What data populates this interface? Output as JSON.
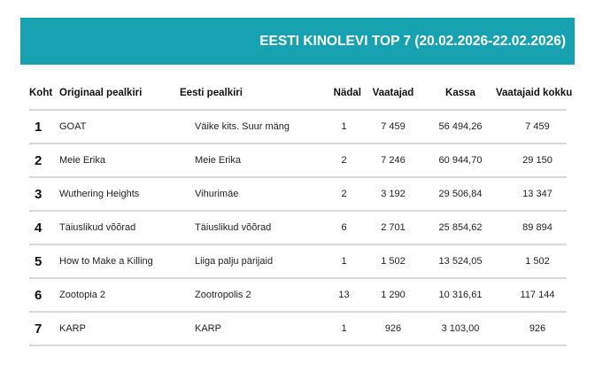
{
  "banner": {
    "title": "EESTI KINOLEVI TOP 7 (20.02.2026-22.02.2026)",
    "color": "#17a2b2"
  },
  "table": {
    "headers": {
      "rank": "Koht",
      "original_title": "Originaal pealkiri",
      "estonian_title": "Eesti pealkiri",
      "week": "Nädal",
      "viewers": "Vaatajad",
      "box_office": "Kassa",
      "total_viewers": "Vaatajaid kokku"
    },
    "rows": [
      {
        "rank": "1",
        "original_title": "GOAT",
        "estonian_title": "Väike kits. Suur mäng",
        "week": "1",
        "viewers": "7 459",
        "box_office": "56 494,26",
        "total_viewers": "7 459"
      },
      {
        "rank": "2",
        "original_title": "Meie Erika",
        "estonian_title": "Meie Erika",
        "week": "2",
        "viewers": "7 246",
        "box_office": "60 944,70",
        "total_viewers": "29 150"
      },
      {
        "rank": "3",
        "original_title": "Wuthering Heights",
        "estonian_title": "Vihurimäe",
        "week": "2",
        "viewers": "3 192",
        "box_office": "29 506,84",
        "total_viewers": "13 347"
      },
      {
        "rank": "4",
        "original_title": "Täiuslikud võõrad",
        "estonian_title": "Täiuslikud võõrad",
        "week": "6",
        "viewers": "2 701",
        "box_office": "25 854,62",
        "total_viewers": "89 894"
      },
      {
        "rank": "5",
        "original_title": "How to Make a Killing",
        "estonian_title": "Liiga palju pärijaid",
        "week": "1",
        "viewers": "1 502",
        "box_office": "13 524,05",
        "total_viewers": "1 502"
      },
      {
        "rank": "6",
        "original_title": "Zootopia 2",
        "estonian_title": "Zootropolis 2",
        "week": "13",
        "viewers": "1 290",
        "box_office": "10 316,61",
        "total_viewers": "117 144"
      },
      {
        "rank": "7",
        "original_title": "KARP",
        "estonian_title": "KARP",
        "week": "1",
        "viewers": "926",
        "box_office": "3 103,00",
        "total_viewers": "926"
      }
    ]
  }
}
